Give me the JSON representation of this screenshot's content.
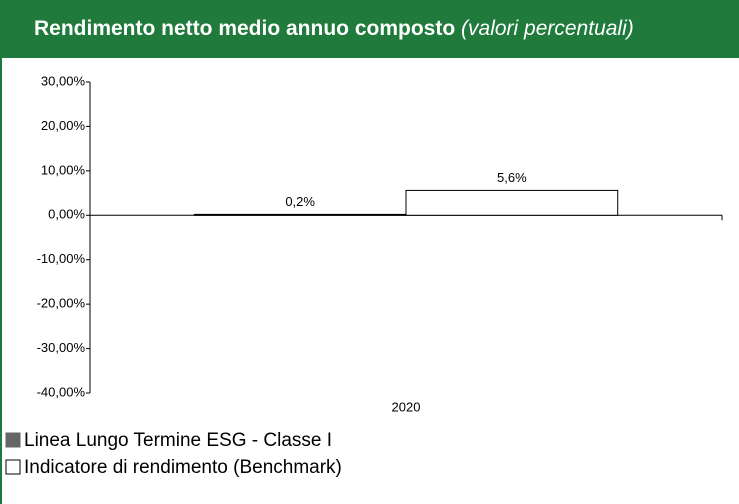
{
  "chart_data": {
    "type": "bar",
    "title": "Rendimento netto medio annuo composto",
    "subtitle": "(valori percentuali)",
    "categories": [
      "2020"
    ],
    "series": [
      {
        "name": "Linea Lungo Termine ESG - Classe I",
        "color": "#666666",
        "values": [
          0.2
        ],
        "value_labels": [
          "0,2%"
        ]
      },
      {
        "name": "Indicatore di rendimento (Benchmark)",
        "color": "#ffffff",
        "values": [
          5.6
        ],
        "value_labels": [
          "5,6%"
        ]
      }
    ],
    "ylim": [
      -40,
      30
    ],
    "yticks": [
      {
        "value": 30,
        "label": "30,00%"
      },
      {
        "value": 20,
        "label": "20,00%"
      },
      {
        "value": 10,
        "label": "10,00%"
      },
      {
        "value": 0,
        "label": "0,00%"
      },
      {
        "value": -10,
        "label": "-10,00%"
      },
      {
        "value": -20,
        "label": "-20,00%"
      },
      {
        "value": -30,
        "label": "-30,00%"
      },
      {
        "value": -40,
        "label": "-40,00%"
      }
    ]
  }
}
